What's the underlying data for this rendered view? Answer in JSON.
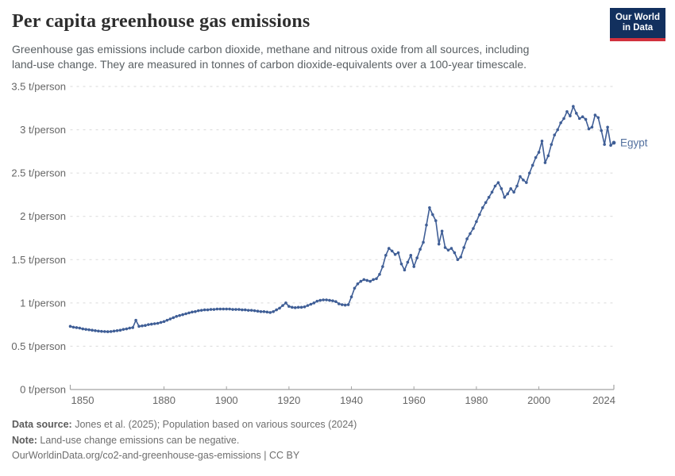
{
  "header": {
    "title": "Per capita greenhouse gas emissions",
    "subtitle_line1": "Greenhouse gas emissions include carbon dioxide, methane and nitrous oxide from all sources, including",
    "subtitle_line2": "land-use change. They are measured in tonnes of carbon dioxide-equivalents over a 100-year timescale.",
    "logo": {
      "line1": "Our World",
      "line2": "in Data",
      "bg_color": "#12305e",
      "accent_color": "#d1313d"
    }
  },
  "chart_data": {
    "type": "line",
    "title": "Per capita greenhouse gas emissions",
    "unit": "t/person",
    "grid": "dashed-horizontal",
    "legend_position": "end-of-line-label",
    "xlim": [
      1850,
      2024
    ],
    "ylim": [
      0,
      3.5
    ],
    "x_ticks": [
      1850,
      1880,
      1900,
      1920,
      1940,
      1960,
      1980,
      2000,
      2024
    ],
    "y_ticks": [
      0,
      0.5,
      1,
      1.5,
      2,
      2.5,
      3,
      3.5
    ],
    "y_tick_labels": [
      "0 t/person",
      "0.5 t/person",
      "1 t/person",
      "1.5 t/person",
      "2 t/person",
      "2.5 t/person",
      "3 t/person",
      "3.5 t/person"
    ],
    "series": [
      {
        "name": "Egypt",
        "color": "#3f5e96",
        "label_color": "#54719f",
        "x_start_year": 1850,
        "x_step": 1,
        "values": [
          0.73,
          0.72,
          0.715,
          0.71,
          0.7,
          0.695,
          0.69,
          0.685,
          0.68,
          0.675,
          0.672,
          0.67,
          0.668,
          0.67,
          0.675,
          0.68,
          0.685,
          0.695,
          0.7,
          0.71,
          0.715,
          0.8,
          0.73,
          0.735,
          0.74,
          0.75,
          0.755,
          0.76,
          0.765,
          0.775,
          0.785,
          0.8,
          0.815,
          0.83,
          0.845,
          0.855,
          0.865,
          0.875,
          0.885,
          0.895,
          0.9,
          0.91,
          0.915,
          0.92,
          0.92,
          0.925,
          0.925,
          0.93,
          0.93,
          0.93,
          0.93,
          0.93,
          0.925,
          0.925,
          0.925,
          0.92,
          0.92,
          0.915,
          0.915,
          0.91,
          0.905,
          0.9,
          0.9,
          0.895,
          0.89,
          0.9,
          0.92,
          0.94,
          0.97,
          1.0,
          0.96,
          0.95,
          0.945,
          0.95,
          0.95,
          0.955,
          0.97,
          0.985,
          1.0,
          1.02,
          1.03,
          1.035,
          1.035,
          1.03,
          1.025,
          1.015,
          0.99,
          0.98,
          0.975,
          0.98,
          1.07,
          1.17,
          1.22,
          1.25,
          1.27,
          1.26,
          1.25,
          1.27,
          1.28,
          1.33,
          1.42,
          1.55,
          1.63,
          1.6,
          1.56,
          1.58,
          1.45,
          1.38,
          1.47,
          1.55,
          1.42,
          1.52,
          1.62,
          1.7,
          1.9,
          2.1,
          2.02,
          1.95,
          1.68,
          1.83,
          1.64,
          1.61,
          1.63,
          1.58,
          1.5,
          1.53,
          1.64,
          1.74,
          1.8,
          1.86,
          1.94,
          2.02,
          2.1,
          2.16,
          2.22,
          2.28,
          2.35,
          2.39,
          2.32,
          2.22,
          2.26,
          2.32,
          2.28,
          2.35,
          2.46,
          2.42,
          2.39,
          2.5,
          2.59,
          2.68,
          2.74,
          2.87,
          2.62,
          2.7,
          2.83,
          2.94,
          3.0,
          3.08,
          3.13,
          3.21,
          3.16,
          3.27,
          3.19,
          3.13,
          3.15,
          3.12,
          3.01,
          3.03,
          3.17,
          3.14,
          2.99,
          2.83,
          3.03,
          2.82,
          2.85
        ]
      }
    ],
    "style": {
      "gridline_color": "#dadada",
      "axis_color": "#a3a3a3",
      "tick_label_color": "#666666"
    }
  },
  "footer": {
    "source_label": "Data source:",
    "source_text": " Jones et al. (2025); Population based on various sources (2024)",
    "note_label": "Note:",
    "note_text": " Land-use change emissions can be negative.",
    "url_text": "OurWorldinData.org/co2-and-greenhouse-gas-emissions | CC BY"
  }
}
